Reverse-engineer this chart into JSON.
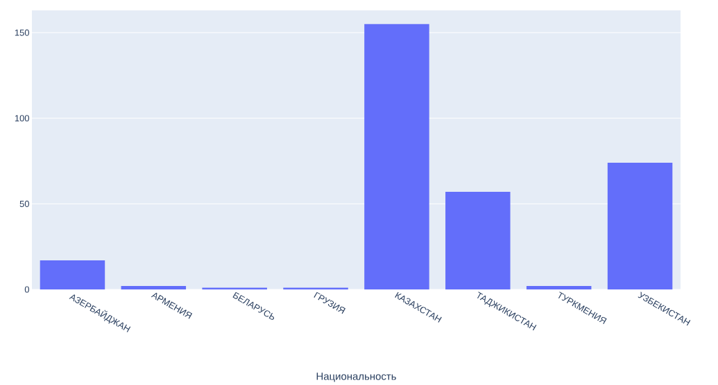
{
  "chart_data": {
    "type": "bar",
    "xlabel": "Национальность",
    "categories": [
      "АЗЕРБАЙДЖАН",
      "АРМЕНИЯ",
      "БЕЛАРУСЬ",
      "ГРУЗИЯ",
      "КАЗАХСТАН",
      "ТАДЖИКИСТАН",
      "ТУРКМЕНИЯ",
      "УЗБЕКИСТАН"
    ],
    "values": [
      17,
      2,
      1,
      1,
      155,
      57,
      2,
      74
    ],
    "color": "#636efa",
    "ylim": [
      0,
      163
    ],
    "yticks": [
      0,
      50,
      100,
      150
    ],
    "grid": "y"
  }
}
